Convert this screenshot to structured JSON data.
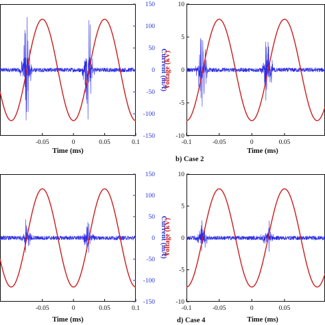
{
  "captions": [
    "b) Case 2",
    "d) Case 4"
  ],
  "colors": {
    "voltage": "#cc1c1c",
    "current": "#2a2ae6",
    "current_axis": "#2b35d8",
    "axis": "#111111"
  },
  "chart_data": [
    {
      "type": "line",
      "caption": "",
      "xlabel": "Time (ms)",
      "ylabel_left": "",
      "ylabel_right": "Current (mA)",
      "xlim": [
        -0.1,
        0.1
      ],
      "x_ticks": [
        "-0.05",
        "0",
        "0.05",
        "0.1"
      ],
      "ylim_right": [
        -150,
        150
      ],
      "yticks_right": [
        "150",
        "100",
        "50",
        "0",
        "-50",
        "-100",
        "-150"
      ],
      "voltage": {
        "amplitude_kV": 7.7,
        "frequency_kHz": 10,
        "phase": "peaks at -0.05 and 0.05 ms"
      },
      "current": {
        "noise_mA": 5,
        "burst_centers_ms": [
          -0.076,
          0.024
        ],
        "burst_peak_mA": 130
      }
    },
    {
      "type": "line",
      "caption": "b) Case 2",
      "xlabel": "Time (ms)",
      "ylabel_left": "Voltage (kV)",
      "ylabel_right": "",
      "xlim": [
        -0.1,
        0.1
      ],
      "x_ticks": [
        "-0.1",
        "-0.05",
        "0",
        "0.05"
      ],
      "ylim_left": [
        -10,
        10
      ],
      "yticks_left": [
        "10",
        "5",
        "0",
        "-5",
        "-10"
      ],
      "voltage": {
        "amplitude_kV": 7.7,
        "frequency_kHz": 10,
        "phase": "peaks at -0.05 and 0.05 ms"
      },
      "current": {
        "noise_mA": 5,
        "burst_centers_ms": [
          -0.076,
          0.024
        ],
        "burst_peak_mA": 90
      }
    },
    {
      "type": "line",
      "caption": "",
      "xlabel": "Time (ms)",
      "ylabel_left": "",
      "ylabel_right": "Current (mA)",
      "xlim": [
        -0.1,
        0.1
      ],
      "x_ticks": [
        "-0.05",
        "0",
        "0.05",
        "0.1"
      ],
      "ylim_right": [
        -150,
        150
      ],
      "yticks_right": [
        "150",
        "100",
        "50",
        "0",
        "-50",
        "-100",
        "-150"
      ],
      "voltage": {
        "amplitude_kV": 7.7,
        "frequency_kHz": 10,
        "phase": "peaks at -0.05 and 0.05 ms"
      },
      "current": {
        "noise_mA": 5,
        "burst_centers_ms": [
          -0.076,
          0.024
        ],
        "burst_peak_mA": 45
      }
    },
    {
      "type": "line",
      "caption": "d) Case 4",
      "xlabel": "Time (ms)",
      "ylabel_left": "Voltage (kV)",
      "ylabel_right": "",
      "xlim": [
        -0.1,
        0.1
      ],
      "x_ticks": [
        "-0.1",
        "-0.05",
        "0",
        "0.05"
      ],
      "ylim_left": [
        -10,
        10
      ],
      "yticks_left": [
        "10",
        "5",
        "0",
        "-5",
        "-10"
      ],
      "voltage": {
        "amplitude_kV": 7.7,
        "frequency_kHz": 10,
        "phase": "peaks at -0.05 and 0.05 ms"
      },
      "current": {
        "noise_mA": 5,
        "burst_centers_ms": [
          -0.076,
          0.024
        ],
        "burst_peak_mA": 45
      }
    }
  ]
}
